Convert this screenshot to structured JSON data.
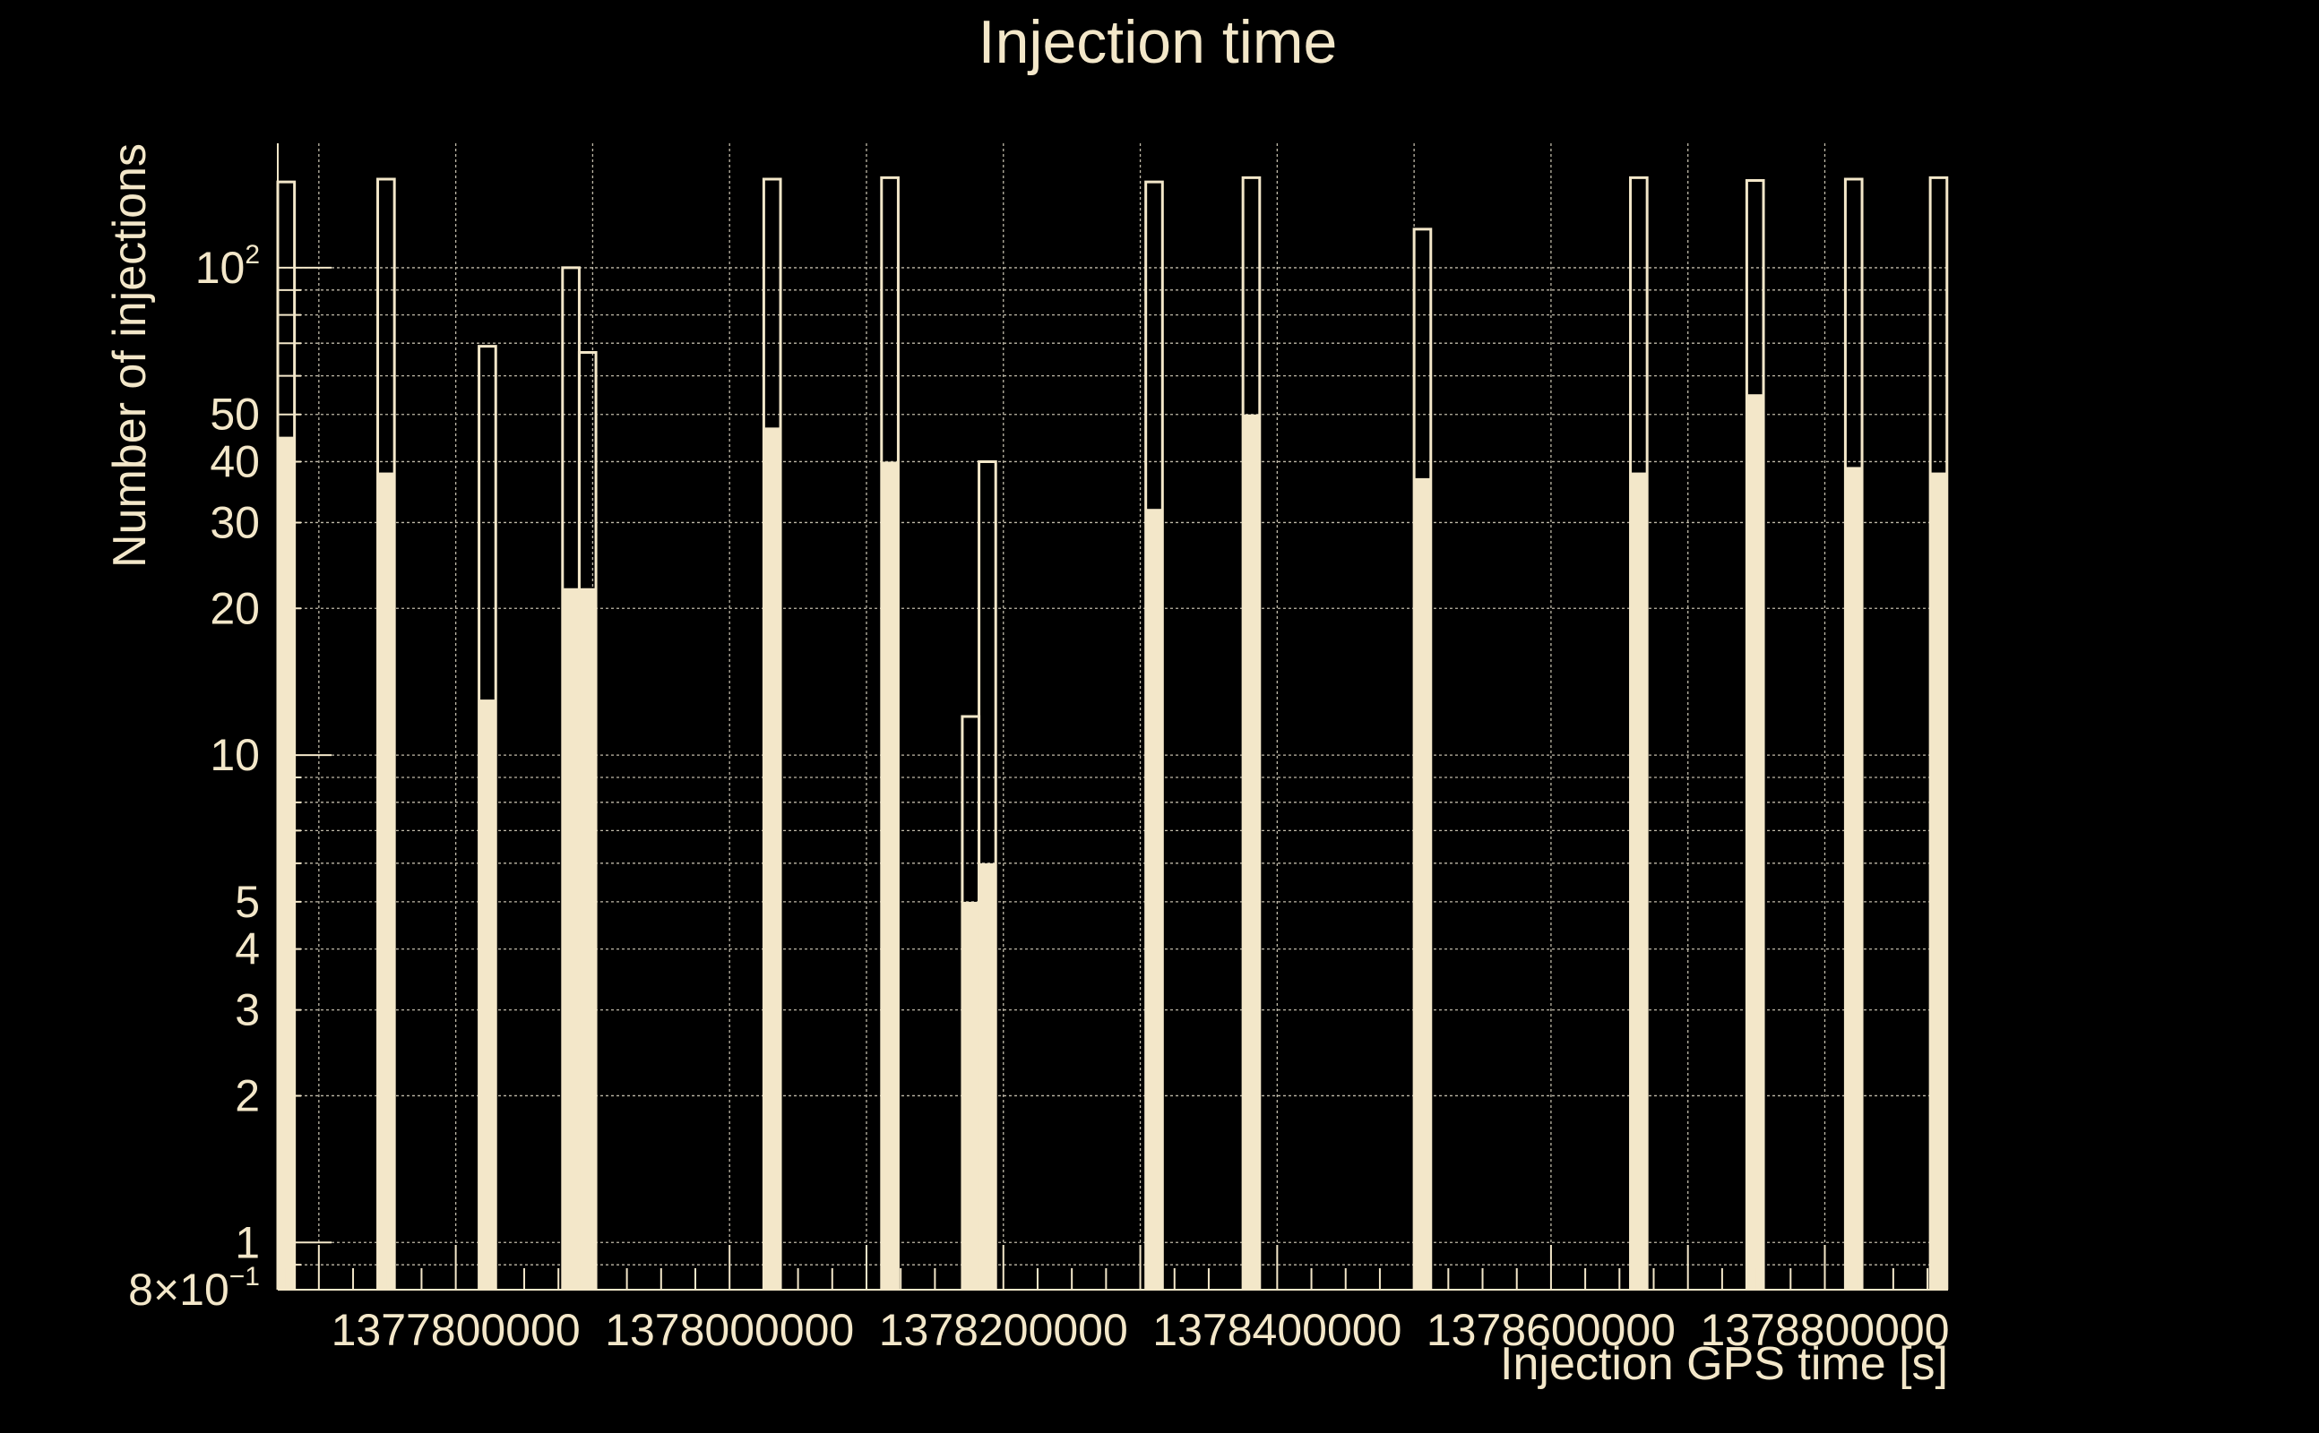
{
  "chart_data": {
    "type": "bar",
    "title": "Injection time",
    "xlabel": "Injection GPS time [s]",
    "ylabel": "Number of injections",
    "x_scale": "linear",
    "y_scale": "log",
    "xlim": [
      1377670000,
      1378890000
    ],
    "ylim": [
      0.8,
      180
    ],
    "grid": true,
    "legend": "none",
    "colors": {
      "background": "#000000",
      "foreground": "#f3e7c9"
    },
    "x_ticks": [
      {
        "value": 1377800000,
        "label": "1377800000"
      },
      {
        "value": 1378000000,
        "label": "1378000000"
      },
      {
        "value": 1378200000,
        "label": "1378200000"
      },
      {
        "value": 1378400000,
        "label": "1378400000"
      },
      {
        "value": 1378600000,
        "label": "1378600000"
      },
      {
        "value": 1378800000,
        "label": "1378800000"
      }
    ],
    "y_ticks": [
      {
        "value": 0.8,
        "label": "8×10",
        "exp": "−1"
      },
      {
        "value": 1,
        "label": "1"
      },
      {
        "value": 2,
        "label": "2"
      },
      {
        "value": 3,
        "label": "3"
      },
      {
        "value": 4,
        "label": "4"
      },
      {
        "value": 5,
        "label": "5"
      },
      {
        "value": 10,
        "label": "10"
      },
      {
        "value": 20,
        "label": "20"
      },
      {
        "value": 30,
        "label": "30"
      },
      {
        "value": 40,
        "label": "40"
      },
      {
        "value": 50,
        "label": "50"
      },
      {
        "value": 100,
        "label": "10",
        "exp": "2"
      }
    ],
    "bin_width": 12200,
    "series": [
      {
        "style": "outline",
        "bins": [
          {
            "x": 1377670000,
            "value": 150
          },
          {
            "x": 1377743000,
            "value": 152
          },
          {
            "x": 1377817000,
            "value": 69
          },
          {
            "x": 1377878000,
            "value": 100
          },
          {
            "x": 1377890200,
            "value": 67
          },
          {
            "x": 1378025000,
            "value": 152
          },
          {
            "x": 1378111000,
            "value": 153
          },
          {
            "x": 1378170000,
            "value": 12
          },
          {
            "x": 1378182200,
            "value": 40
          },
          {
            "x": 1378304000,
            "value": 150
          },
          {
            "x": 1378375000,
            "value": 153
          },
          {
            "x": 1378500000,
            "value": 120
          },
          {
            "x": 1378658000,
            "value": 153
          },
          {
            "x": 1378743000,
            "value": 151
          },
          {
            "x": 1378815000,
            "value": 152
          },
          {
            "x": 1378877000,
            "value": 153
          }
        ]
      },
      {
        "style": "filled",
        "bins": [
          {
            "x": 1377670000,
            "value": 45
          },
          {
            "x": 1377743000,
            "value": 38
          },
          {
            "x": 1377817000,
            "value": 13
          },
          {
            "x": 1377878000,
            "value": 22
          },
          {
            "x": 1377890200,
            "value": 22
          },
          {
            "x": 1378025000,
            "value": 47
          },
          {
            "x": 1378111000,
            "value": 40
          },
          {
            "x": 1378170000,
            "value": 5
          },
          {
            "x": 1378182200,
            "value": 6
          },
          {
            "x": 1378304000,
            "value": 32
          },
          {
            "x": 1378375000,
            "value": 50
          },
          {
            "x": 1378500000,
            "value": 37
          },
          {
            "x": 1378658000,
            "value": 38
          },
          {
            "x": 1378743000,
            "value": 55
          },
          {
            "x": 1378815000,
            "value": 39
          },
          {
            "x": 1378877000,
            "value": 38
          }
        ]
      }
    ]
  }
}
